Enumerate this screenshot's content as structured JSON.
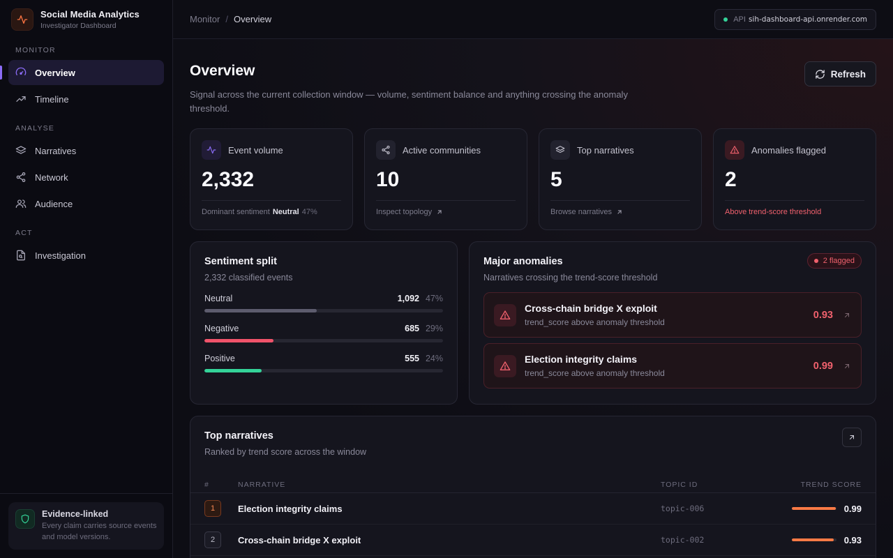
{
  "brand": {
    "title": "Social Media Analytics",
    "subtitle": "Investigator Dashboard"
  },
  "sidebar": {
    "sections": [
      {
        "label": "MONITOR",
        "items": [
          {
            "label": "Overview",
            "icon": "gauge-icon",
            "active": true
          },
          {
            "label": "Timeline",
            "icon": "trending-up-icon"
          }
        ]
      },
      {
        "label": "ANALYSE",
        "items": [
          {
            "label": "Narratives",
            "icon": "layers-icon"
          },
          {
            "label": "Network",
            "icon": "share-icon"
          },
          {
            "label": "Audience",
            "icon": "users-icon"
          }
        ]
      },
      {
        "label": "ACT",
        "items": [
          {
            "label": "Investigation",
            "icon": "file-search-icon"
          }
        ]
      }
    ],
    "footer": {
      "title": "Evidence-linked",
      "description": "Every claim carries source events and model versions."
    }
  },
  "topbar": {
    "breadcrumb": [
      "Monitor",
      "Overview"
    ],
    "api_label": "API",
    "api_host": "sih-dashboard-api.onrender.com"
  },
  "page": {
    "title": "Overview",
    "description": "Signal across the current collection window — volume, sentiment balance and anything crossing the anomaly threshold.",
    "refresh_label": "Refresh"
  },
  "stats": [
    {
      "label": "Event volume",
      "value": "2,332",
      "foot_prefix": "Dominant sentiment",
      "foot_strong": "Neutral",
      "foot_pct": "47%"
    },
    {
      "label": "Active communities",
      "value": "10",
      "foot_link": "Inspect topology"
    },
    {
      "label": "Top narratives",
      "value": "5",
      "foot_link": "Browse narratives"
    },
    {
      "label": "Anomalies flagged",
      "value": "2",
      "foot_warn": "Above trend-score threshold"
    }
  ],
  "sentiment": {
    "title": "Sentiment split",
    "subtitle": "2,332 classified events",
    "rows": [
      {
        "label": "Neutral",
        "count": "1,092",
        "pct": "47%",
        "fraction": 0.47,
        "color": "#5d5c6e"
      },
      {
        "label": "Negative",
        "count": "685",
        "pct": "29%",
        "fraction": 0.29,
        "color": "#f0536a"
      },
      {
        "label": "Positive",
        "count": "555",
        "pct": "24%",
        "fraction": 0.24,
        "color": "#34d399"
      }
    ]
  },
  "anomalies": {
    "title": "Major anomalies",
    "subtitle": "Narratives crossing the trend-score threshold",
    "badge": "2 flagged",
    "items": [
      {
        "title": "Cross-chain bridge X exploit",
        "desc": "trend_score above anomaly threshold",
        "score": "0.93"
      },
      {
        "title": "Election integrity claims",
        "desc": "trend_score above anomaly threshold",
        "score": "0.99"
      }
    ]
  },
  "narratives": {
    "title": "Top narratives",
    "subtitle": "Ranked by trend score across the window",
    "columns": [
      "#",
      "NARRATIVE",
      "TOPIC ID",
      "TREND SCORE"
    ],
    "rows": [
      {
        "rank": "1",
        "name": "Election integrity claims",
        "topic": "topic-006",
        "score": "0.99",
        "value": 0.99
      },
      {
        "rank": "2",
        "name": "Cross-chain bridge X exploit",
        "topic": "topic-002",
        "score": "0.93",
        "value": 0.93
      }
    ]
  }
}
